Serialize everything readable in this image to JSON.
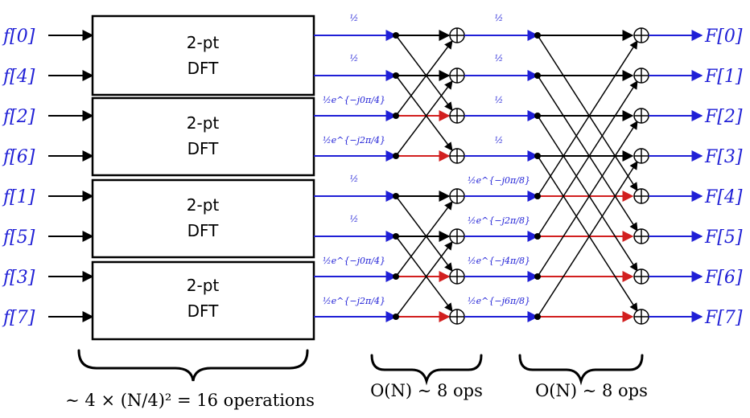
{
  "inputs": [
    "f[0]",
    "f[4]",
    "f[2]",
    "f[6]",
    "f[1]",
    "f[5]",
    "f[3]",
    "f[7]"
  ],
  "outputs": [
    "F[0]",
    "F[1]",
    "F[2]",
    "F[3]",
    "F[4]",
    "F[5]",
    "F[6]",
    "F[7]"
  ],
  "dft_blocks": [
    {
      "line1": "2-pt",
      "line2": "DFT"
    },
    {
      "line1": "2-pt",
      "line2": "DFT"
    },
    {
      "line1": "2-pt",
      "line2": "DFT"
    },
    {
      "line1": "2-pt",
      "line2": "DFT"
    }
  ],
  "stage1_coeffs": [
    "½",
    "½",
    "½e^{−j0π/4}",
    "½e^{−j2π/4}",
    "½",
    "½",
    "½e^{−j0π/4}",
    "½e^{−j2π/4}"
  ],
  "stage2_coeffs": [
    "½",
    "½",
    "½",
    "½",
    "½e^{−j0π/8}",
    "½e^{−j2π/8}",
    "½e^{−j4π/8}",
    "½e^{−j6π/8}"
  ],
  "annotations": {
    "dft_cost": "∼ 4 × (N/4)² = 16 operations",
    "stage1_cost": "O(N) ∼ 8 ops",
    "stage2_cost": "O(N) ∼ 8 ops"
  },
  "colors": {
    "signal": "#1f1fd6",
    "twiddle": "#d21f1f",
    "wire": "#000000"
  }
}
